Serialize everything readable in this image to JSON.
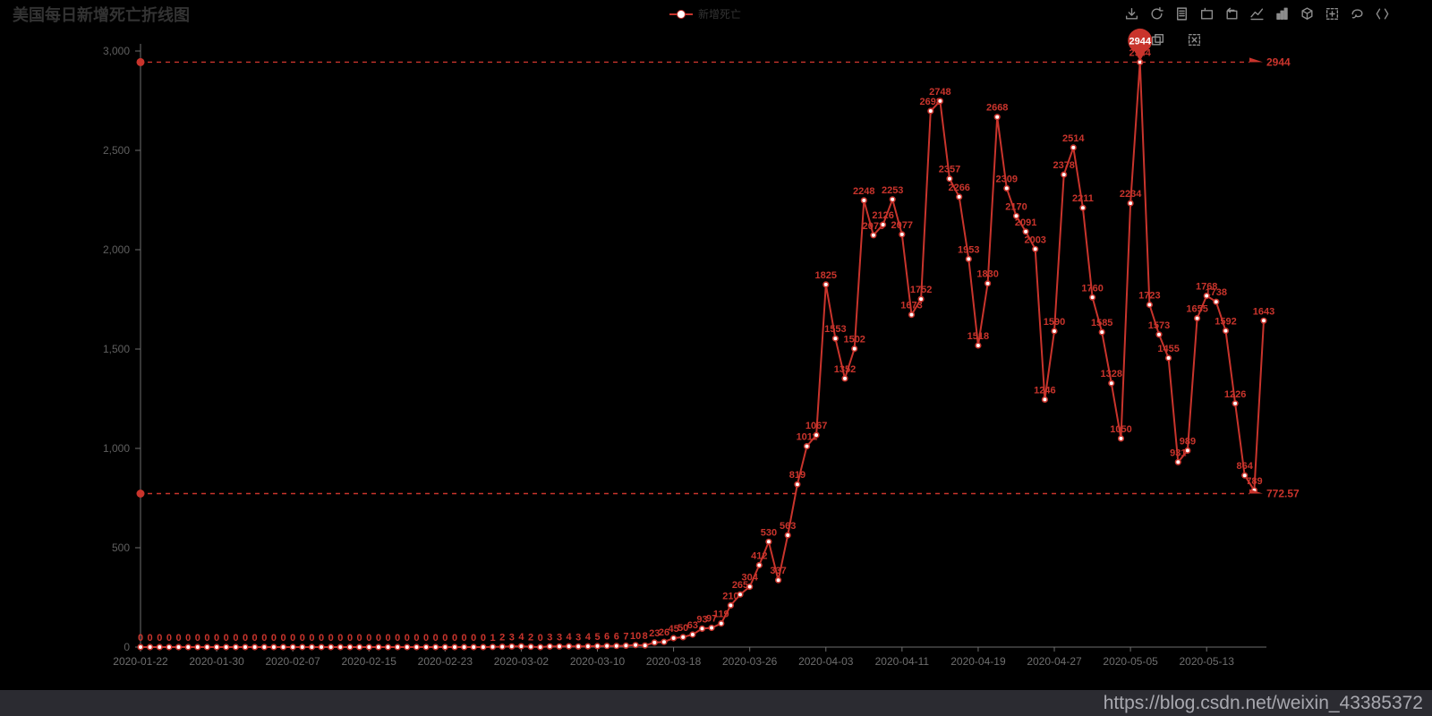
{
  "page": {
    "title": "美国每日新增死亡折线图",
    "watermark": "https://blog.csdn.net/weixin_43385372"
  },
  "legend": {
    "label": "新增死亡"
  },
  "toolbox": {
    "row1": [
      "save-image",
      "restore",
      "data-view",
      "data-zoom",
      "data-zoom-reset",
      "line-type",
      "bar-type",
      "stack",
      "tiled",
      "lasso-select",
      "expand-select"
    ],
    "row2": [
      "keep-selection",
      "clear-selection"
    ]
  },
  "colors": {
    "background": "#000000",
    "series_red": "#c9342c",
    "title_gray": "#333333",
    "axis_line": "#6e6e6e",
    "y_axis_label": "#5f5f5f",
    "x_axis_label": "#6e6e6e",
    "toolbox_icon": "#8d8d8d",
    "marker_fill": "#ffffff",
    "watermark_bg": "#2b2b31",
    "watermark_text": "#a8a8af"
  },
  "chart_data": {
    "type": "line",
    "title": "美国每日新增死亡折线图",
    "legend_position": "top-center",
    "grid": false,
    "ylim": [
      0,
      3000
    ],
    "y_tick_labels": [
      "0",
      "500",
      "1,000",
      "1,500",
      "2,000",
      "2,500",
      "3,000"
    ],
    "x_tick_labels": [
      "2020-01-22",
      "2020-01-30",
      "2020-02-07",
      "2020-02-15",
      "2020-02-23",
      "2020-03-02",
      "2020-03-10",
      "2020-03-18",
      "2020-03-26",
      "2020-04-03",
      "2020-04-11",
      "2020-04-19",
      "2020-04-27",
      "2020-05-05",
      "2020-05-13"
    ],
    "x_tick_every_n_points": 8,
    "series": [
      {
        "name": "新增死亡",
        "color": "#c9342c",
        "values": [
          0,
          0,
          0,
          0,
          0,
          0,
          0,
          0,
          0,
          0,
          0,
          0,
          0,
          0,
          0,
          0,
          0,
          0,
          0,
          0,
          0,
          0,
          0,
          0,
          0,
          0,
          0,
          0,
          0,
          0,
          0,
          0,
          0,
          0,
          0,
          0,
          0,
          1,
          2,
          3,
          4,
          2,
          0,
          3,
          3,
          4,
          3,
          4,
          5,
          6,
          6,
          7,
          10,
          8,
          23,
          26,
          45,
          50,
          63,
          93,
          97,
          119,
          210,
          265,
          304,
          412,
          530,
          337,
          563,
          819,
          1011,
          1067,
          1825,
          1553,
          1352,
          1502,
          2248,
          2073,
          2126,
          2253,
          2077,
          1673,
          1752,
          2698,
          2748,
          2357,
          2266,
          1953,
          1518,
          1830,
          2668,
          2309,
          2170,
          2091,
          2003,
          1246,
          1590,
          2378,
          2514,
          2211,
          1760,
          1585,
          1328,
          1050,
          2234,
          2944,
          1723,
          1573,
          1455,
          931,
          989,
          1655,
          1768,
          1738,
          1592,
          1226,
          864,
          789,
          1643
        ]
      }
    ],
    "marklines": [
      {
        "type": "max",
        "value": 2944,
        "label": "2944"
      },
      {
        "type": "average",
        "value": 772.57,
        "label": "772.57"
      }
    ],
    "markpoint": {
      "type": "max",
      "value": 2944,
      "label": "2944"
    }
  }
}
